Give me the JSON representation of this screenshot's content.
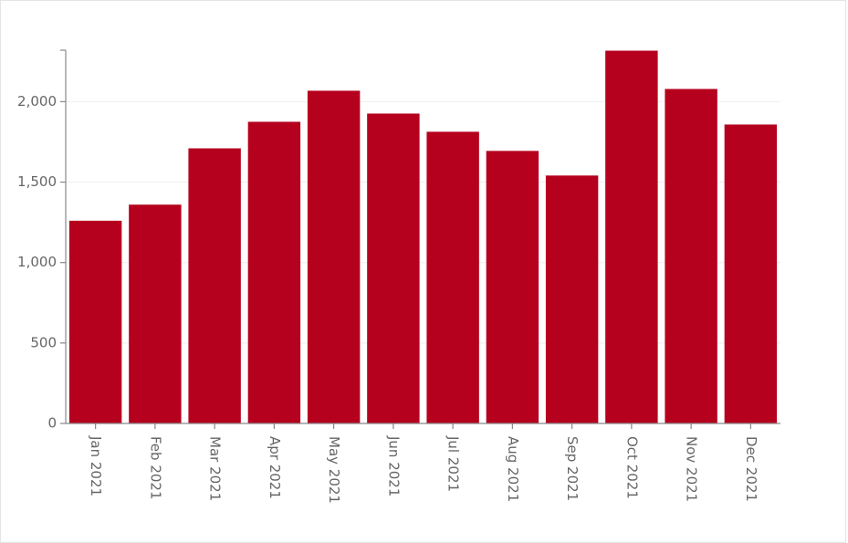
{
  "chart_data": {
    "type": "bar",
    "categories": [
      "Jan 2021",
      "Feb 2021",
      "Mar 2021",
      "Apr 2021",
      "May 2021",
      "Jun 2021",
      "Jul 2021",
      "Aug 2021",
      "Sep 2021",
      "Oct 2021",
      "Nov 2021",
      "Dec 2021"
    ],
    "values": [
      1260,
      1360,
      1710,
      1875,
      2068,
      1926,
      1813,
      1694,
      1541,
      2317,
      2079,
      1858
    ],
    "color": "#b5001e",
    "ylim": [
      0,
      2320
    ],
    "yticks": [
      0,
      500,
      {
        "value": 1000,
        "label": "1,000"
      },
      {
        "value": 1500,
        "label": "1,500"
      },
      {
        "value": 2000,
        "label": "2,000"
      }
    ],
    "grid": true
  }
}
